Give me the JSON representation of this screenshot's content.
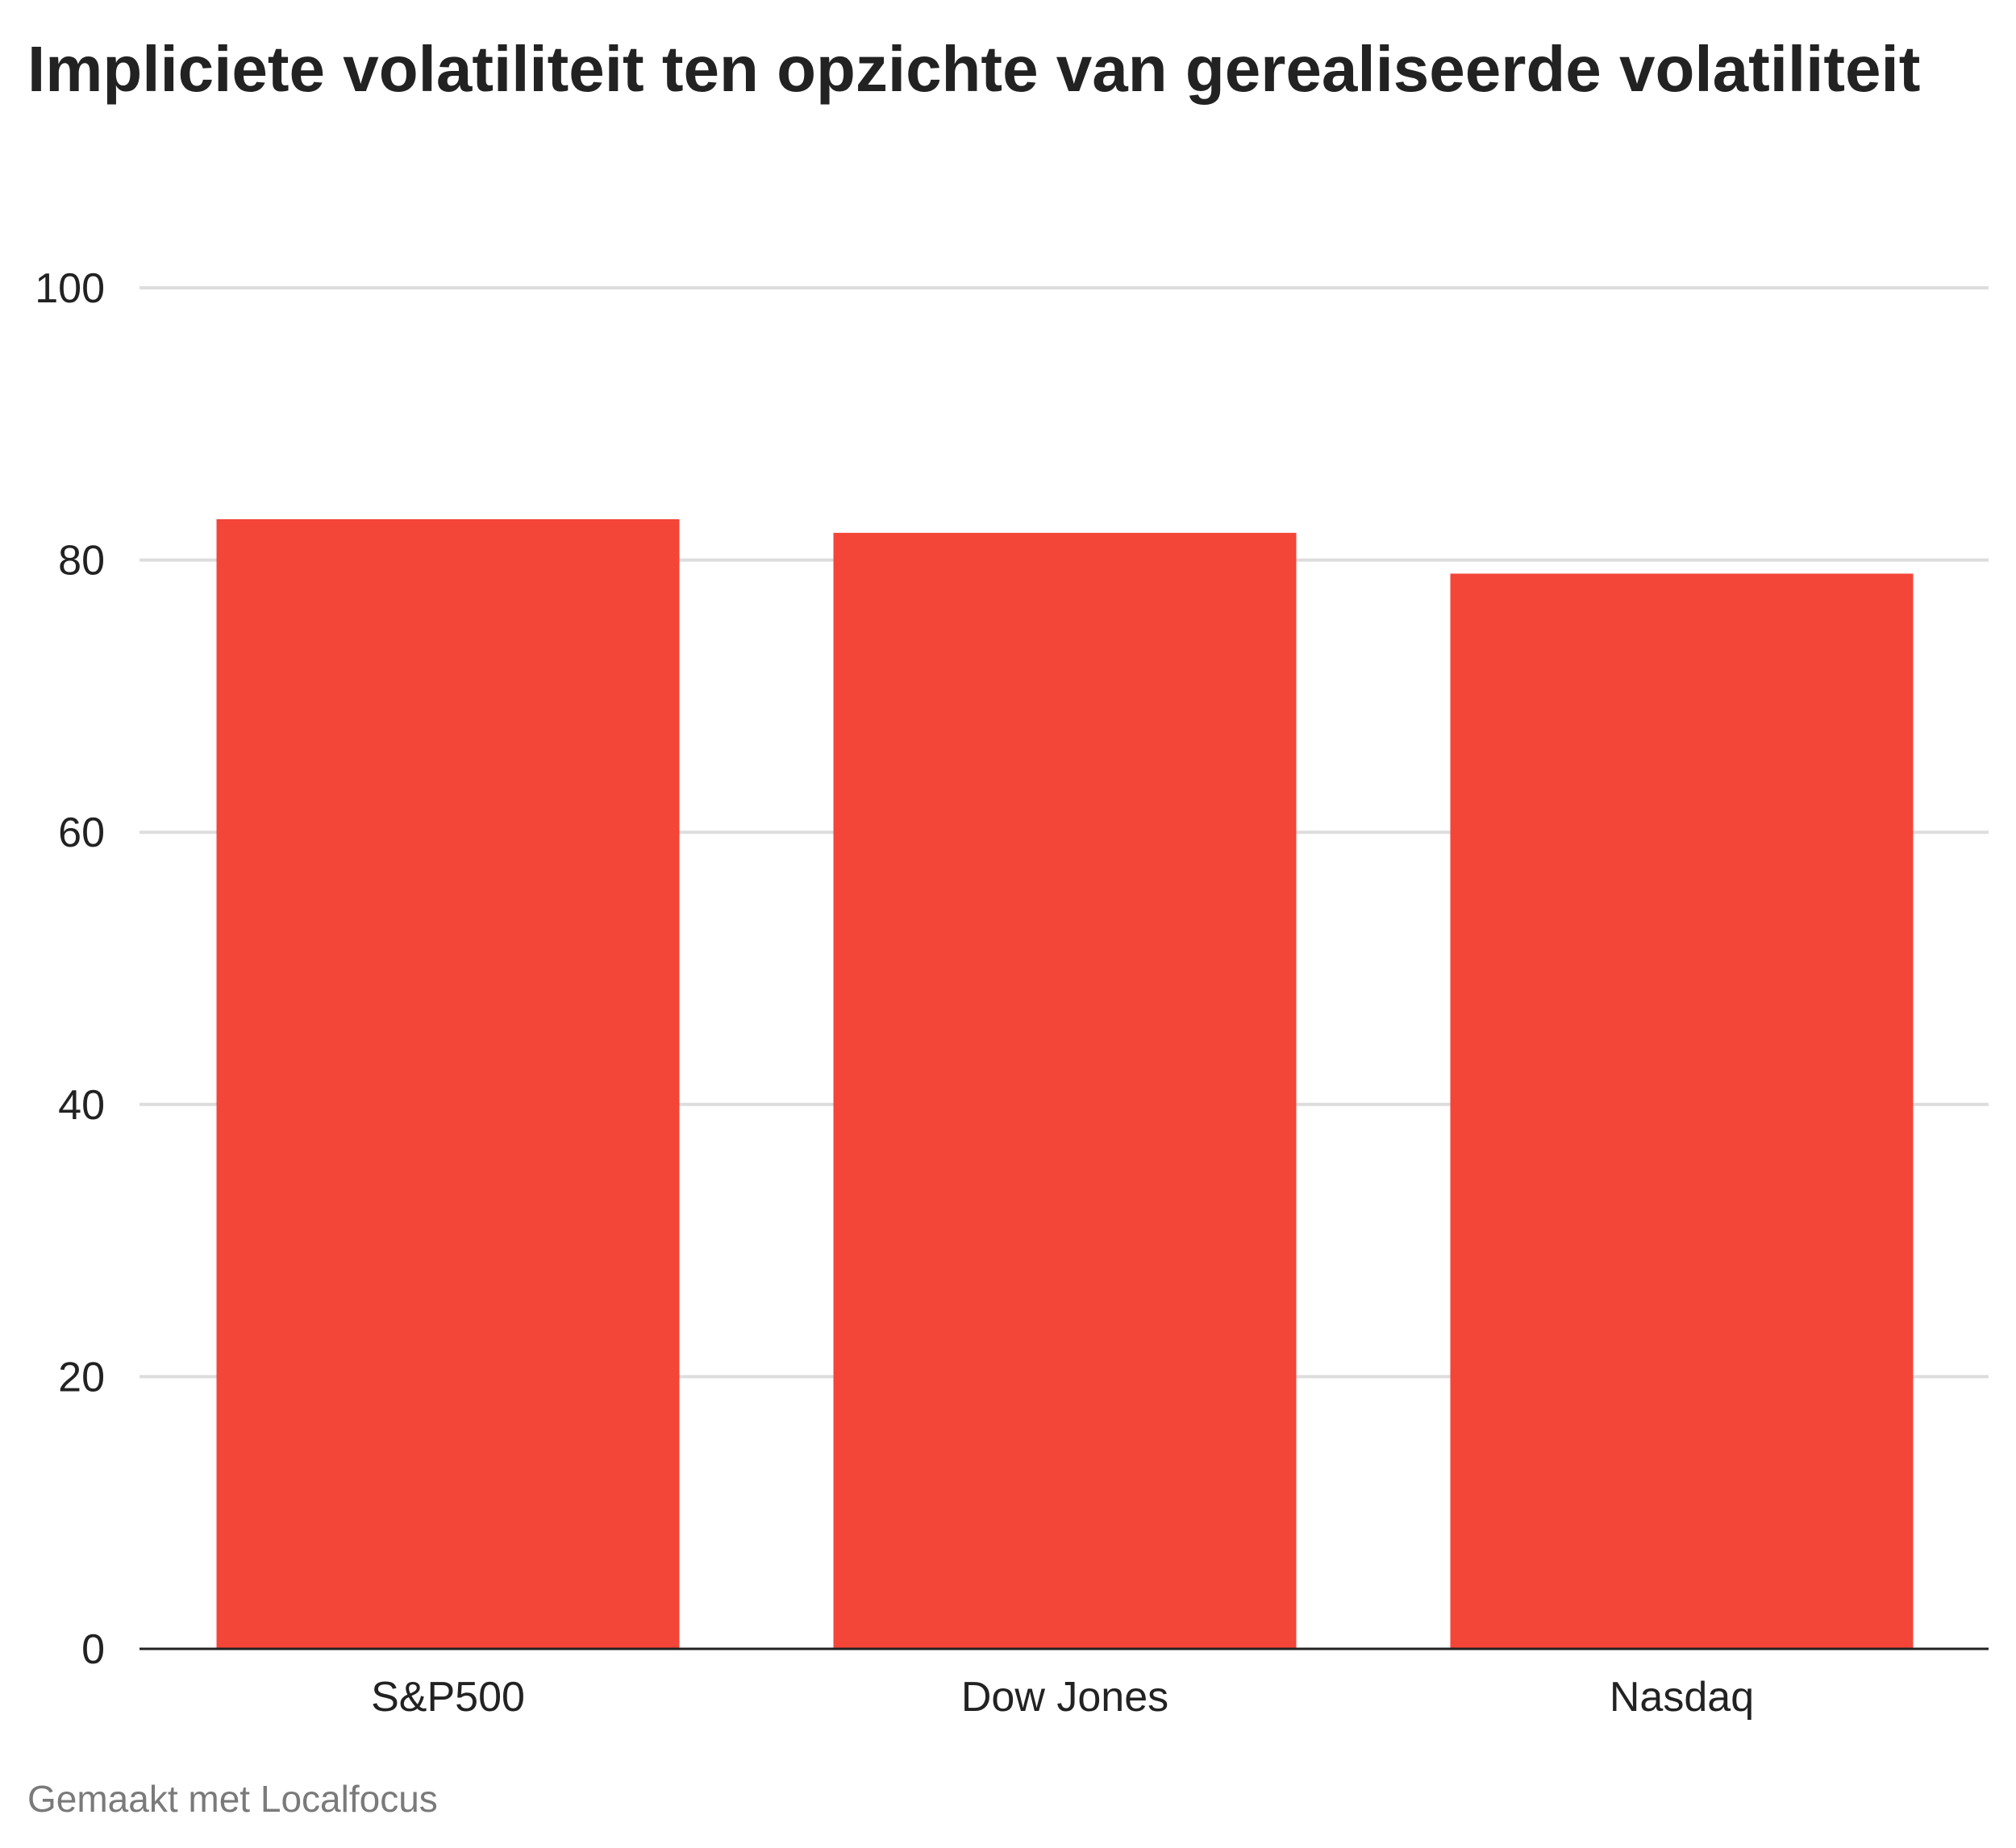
{
  "chart_data": {
    "type": "bar",
    "title": "Impliciete volatiliteit ten opzichte van gerealiseerde volatiliteit",
    "categories": [
      "S&P500",
      "Dow Jones",
      "Nasdaq"
    ],
    "values": [
      83,
      82,
      79
    ],
    "xlabel": "",
    "ylabel": "",
    "ylim": [
      0,
      100
    ],
    "yticks": [
      0,
      20,
      40,
      60,
      80,
      100
    ],
    "grid": true,
    "bar_color": "#f44539",
    "grid_color": "#dddddd",
    "axis_color": "#222222"
  },
  "footer": {
    "source": "Gemaakt met Localfocus"
  }
}
